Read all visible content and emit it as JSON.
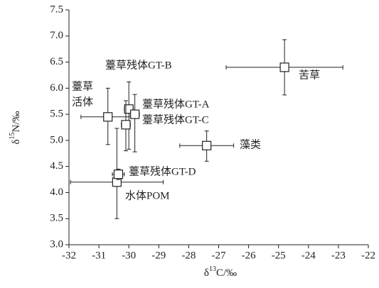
{
  "chart_data": {
    "type": "scatter",
    "x_label": {
      "prefix": "δ",
      "sup": "13",
      "suffix": "C/‰"
    },
    "y_label": {
      "prefix": "δ",
      "sup": "15",
      "suffix": "N/‰"
    },
    "xlim": [
      -32,
      -22
    ],
    "xticks": [
      -32,
      -31,
      -30,
      -29,
      -28,
      -27,
      -26,
      -25,
      -24,
      -23,
      -22
    ],
    "ylim": [
      3,
      7.5
    ],
    "yticks": [
      {
        "value": 3,
        "label": "3.0"
      },
      {
        "value": 3.5,
        "label": "3.5"
      },
      {
        "value": 4,
        "label": "4.0"
      },
      {
        "value": 4.5,
        "label": "4.5"
      },
      {
        "value": 5,
        "label": "5.0"
      },
      {
        "value": 5.5,
        "label": "5.5"
      },
      {
        "value": 6,
        "label": "6.0"
      },
      {
        "value": 6.5,
        "label": "6.5"
      },
      {
        "value": 7,
        "label": "7.0"
      },
      {
        "value": 7.5,
        "label": "7.5"
      }
    ],
    "color": "#222222",
    "points": [
      {
        "label": [
          "苦草"
        ],
        "x": -24.8,
        "y": 6.4,
        "xerr": 1.95,
        "yerr": [
          0.53,
          0.53
        ]
      },
      {
        "label": [
          "藻类"
        ],
        "x": -27.4,
        "y": 4.9,
        "xerr": 0.9,
        "yerr": [
          0.3,
          0.28
        ]
      },
      {
        "label": [
          "水体POM"
        ],
        "x": -30.4,
        "y": 4.2,
        "xerr": 1.55,
        "yerr": [
          0.7,
          1.03
        ]
      },
      {
        "label": [
          "薹草",
          "活体"
        ],
        "x": -30.7,
        "y": 5.45,
        "xerr": 0.9,
        "yerr": [
          0.53,
          0.55
        ]
      },
      {
        "label": [
          "薹草残体GT-A"
        ],
        "x": -30.0,
        "y": 5.6,
        "xerr": 0.15,
        "yerr": [
          0.77,
          0.52
        ]
      },
      {
        "label": [
          "薹草残体GT-C"
        ],
        "x": -29.8,
        "y": 5.5,
        "xerr": 0.15,
        "yerr": [
          0.72,
          0.38
        ]
      },
      {
        "label": [
          "薹草残体GT-B"
        ],
        "x": -30.1,
        "y": 5.3,
        "xerr": 0.15,
        "yerr": [
          0.5,
          0.46
        ]
      },
      {
        "label": [
          "薹草残体GT-D"
        ],
        "x": -30.35,
        "y": 4.35,
        "xerr": 0.2,
        "yerr": [
          0.1,
          0.1
        ]
      }
    ]
  }
}
